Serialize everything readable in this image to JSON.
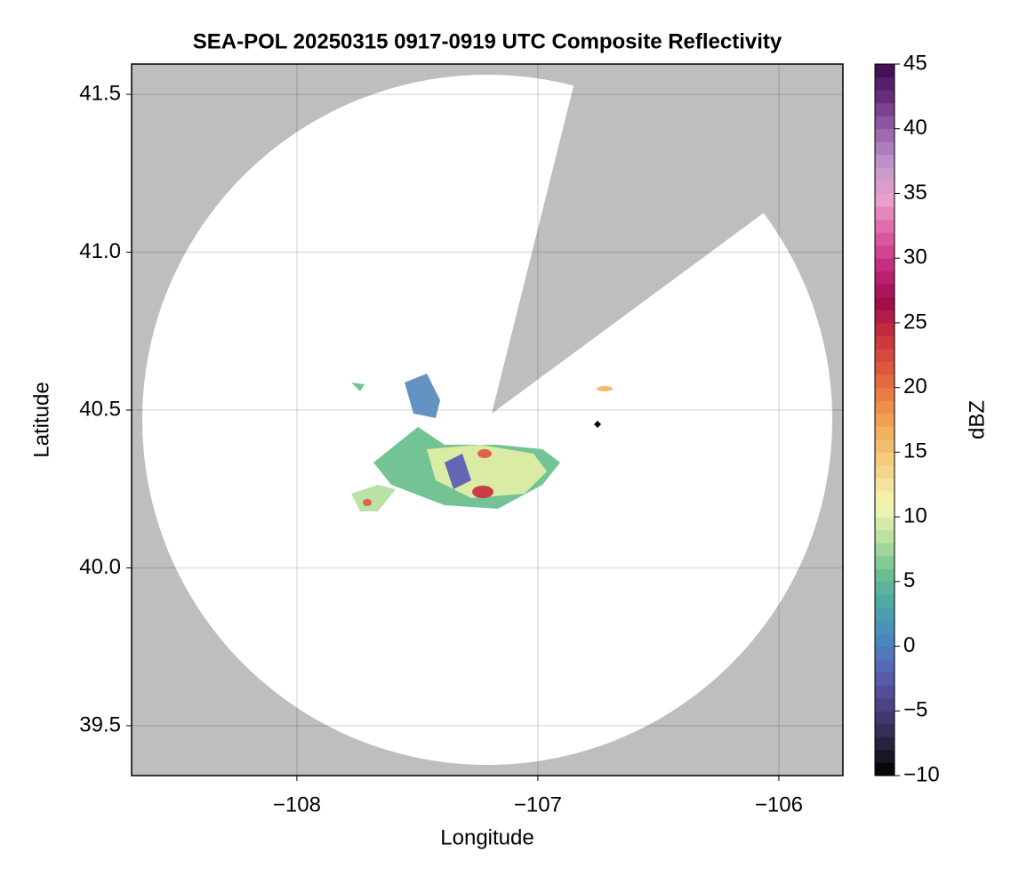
{
  "chart_data": {
    "type": "radar-map",
    "title": "SEA-POL 20250315 0917-0919 UTC Composite Reflectivity",
    "x_label": "Longitude",
    "y_label": "Latitude",
    "xlim": [
      -108.686,
      -105.734
    ],
    "ylim": [
      39.342,
      41.596
    ],
    "xticks": [
      {
        "value": -108,
        "label": "−108"
      },
      {
        "value": -107,
        "label": "−107"
      },
      {
        "value": -106,
        "label": "−106"
      }
    ],
    "yticks": [
      39.5,
      {
        "value": 40.0,
        "label": "40.0"
      },
      40.5,
      {
        "value": 41.0,
        "label": "41.0"
      },
      41.5
    ],
    "grid": true,
    "colorbar": {
      "label": "dBZ",
      "lim": [
        -10,
        45
      ],
      "ticks": [
        {
          "value": -10,
          "label": "−10"
        },
        {
          "value": -5,
          "label": "−5"
        },
        0,
        5,
        10,
        15,
        20,
        25,
        30,
        35,
        40,
        45
      ],
      "colors": [
        "#000000",
        "#2a2540",
        "#4a3f82",
        "#5b5eb0",
        "#4a87c0",
        "#4aa5a8",
        "#6cc08f",
        "#b8e0a0",
        "#f5f7b5",
        "#f2d68a",
        "#f1b665",
        "#ec8a45",
        "#de5a3e",
        "#c8313e",
        "#9e0d4a",
        "#c52a7d",
        "#dd5fa3",
        "#e9a0cc",
        "#c498cc",
        "#9a66ad",
        "#6a2e80",
        "#3b0a4a"
      ]
    }
  }
}
